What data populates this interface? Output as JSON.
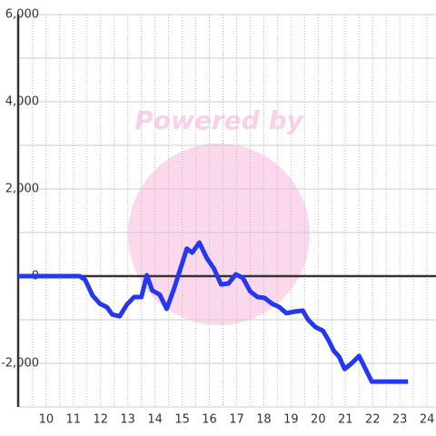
{
  "chart_data": {
    "type": "line",
    "watermark": "Powered by",
    "x": [
      8.97,
      11.23,
      11.43,
      11.7,
      11.97,
      12.23,
      12.43,
      12.7,
      12.97,
      13.23,
      13.5,
      13.7,
      13.9,
      14.17,
      14.43,
      14.7,
      15.17,
      15.37,
      15.63,
      15.9,
      16.17,
      16.43,
      16.7,
      16.97,
      17.23,
      17.5,
      17.77,
      18.03,
      18.3,
      18.57,
      18.83,
      19.17,
      19.43,
      19.63,
      19.9,
      20.17,
      20.37,
      20.57,
      20.77,
      20.97,
      21.23,
      21.5,
      21.7,
      21.97,
      22.3,
      23.3
    ],
    "series": [
      {
        "color": "#2338f0",
        "values": [
          0,
          0,
          -80,
          -440,
          -630,
          -710,
          -880,
          -920,
          -650,
          -480,
          -480,
          20,
          -330,
          -420,
          -750,
          -290,
          630,
          540,
          770,
          420,
          170,
          -190,
          -170,
          40,
          -40,
          -350,
          -480,
          -500,
          -630,
          -710,
          -850,
          -810,
          -790,
          -1000,
          -1170,
          -1250,
          -1460,
          -1710,
          -1850,
          -2130,
          -2000,
          -1830,
          -2080,
          -2420,
          -2420,
          -2420
        ]
      }
    ],
    "xlim": [
      8.97,
      24.33
    ],
    "ylim": [
      -3000,
      6000
    ],
    "xticks": [
      10,
      11,
      12,
      13,
      14,
      15,
      16,
      17,
      18,
      19,
      20,
      21,
      22,
      23,
      24
    ],
    "x_minor_ticks": [
      9.5,
      10.5,
      11.5,
      12.5,
      13.5,
      14.5,
      15.5,
      16.5,
      17.5,
      18.5,
      19.5,
      20.5,
      21.5,
      22.5,
      23.5
    ],
    "yticks": [
      {
        "value": -2000,
        "label": "-2,000"
      },
      0,
      {
        "value": 2000,
        "label": "2,000"
      },
      {
        "value": 4000,
        "label": "4,000"
      },
      {
        "value": 6000,
        "label": "6,000"
      }
    ],
    "y_minor_ticks": [
      -3000,
      -1000,
      1000,
      3000,
      5000
    ],
    "grid": true
  }
}
